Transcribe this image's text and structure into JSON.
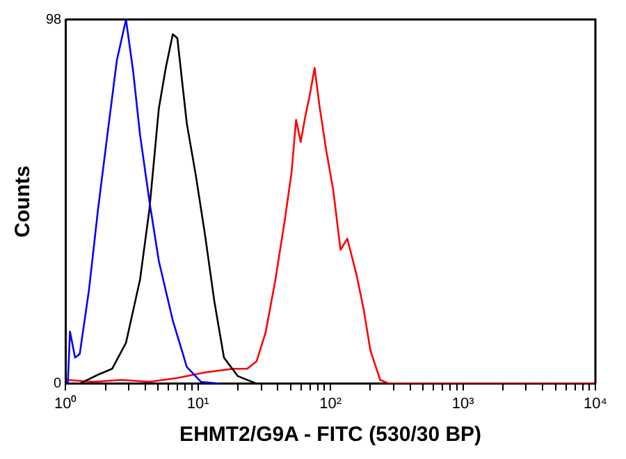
{
  "chart_data": {
    "type": "line",
    "xlabel": "EHMT2/G9A - FITC (530/30 BP)",
    "ylabel": "Counts",
    "log": "x",
    "grid": false,
    "legend": false,
    "marker": "none",
    "line_style": "solid",
    "xlim": [
      1,
      10000
    ],
    "ylim": [
      0,
      98
    ],
    "yticks": [
      0,
      98
    ],
    "xticks": [
      {
        "value": 1,
        "label": "10⁰"
      },
      {
        "value": 2,
        "label": null
      },
      {
        "value": 3,
        "label": null
      },
      {
        "value": 4,
        "label": null
      },
      {
        "value": 5,
        "label": null
      },
      {
        "value": 6,
        "label": null
      },
      {
        "value": 7,
        "label": null
      },
      {
        "value": 8,
        "label": null
      },
      {
        "value": 9,
        "label": null
      },
      {
        "value": 10,
        "label": "10¹"
      },
      {
        "value": 20,
        "label": null
      },
      {
        "value": 30,
        "label": null
      },
      {
        "value": 40,
        "label": null
      },
      {
        "value": 50,
        "label": null
      },
      {
        "value": 60,
        "label": null
      },
      {
        "value": 70,
        "label": null
      },
      {
        "value": 80,
        "label": null
      },
      {
        "value": 90,
        "label": null
      },
      {
        "value": 100,
        "label": "10²"
      },
      {
        "value": 200,
        "label": null
      },
      {
        "value": 300,
        "label": null
      },
      {
        "value": 400,
        "label": null
      },
      {
        "value": 500,
        "label": null
      },
      {
        "value": 600,
        "label": null
      },
      {
        "value": 700,
        "label": null
      },
      {
        "value": 800,
        "label": null
      },
      {
        "value": 900,
        "label": null
      },
      {
        "value": 1000,
        "label": "10³"
      },
      {
        "value": 2000,
        "label": null
      },
      {
        "value": 3000,
        "label": null
      },
      {
        "value": 4000,
        "label": null
      },
      {
        "value": 5000,
        "label": null
      },
      {
        "value": 6000,
        "label": null
      },
      {
        "value": 7000,
        "label": null
      },
      {
        "value": 8000,
        "label": null
      },
      {
        "value": 9000,
        "label": null
      },
      {
        "value": 10000,
        "label": "10⁴"
      }
    ],
    "series": [
      {
        "color": "#0000ff",
        "x": [
          1.04,
          1.08,
          1.18,
          1.28,
          1.5,
          1.76,
          2.07,
          2.44,
          2.86,
          3.24,
          3.65,
          4.3,
          5.06,
          6.45,
          8.23,
          10.5,
          14.5
        ],
        "values": [
          0,
          14,
          7,
          8,
          25,
          47,
          67,
          87,
          98,
          84,
          67,
          49,
          33,
          17,
          4.5,
          0.5,
          0
        ]
      },
      {
        "color": "#000000",
        "x": [
          1.28,
          1.76,
          2.25,
          2.86,
          3.65,
          4.3,
          5.06,
          5.71,
          6.45,
          6.98,
          8.23,
          9.63,
          11.3,
          13.3,
          15.7,
          20,
          27.7
        ],
        "values": [
          0,
          2.4,
          4,
          11,
          28,
          47,
          74,
          85,
          94,
          93,
          70,
          56,
          40,
          22,
          7,
          2,
          0
        ]
      },
      {
        "color": "#ff0000",
        "x": [
          1.02,
          1.63,
          2.64,
          4.3,
          6.98,
          11.3,
          18.4,
          23.5,
          27.7,
          32.5,
          38.4,
          45.2,
          50.9,
          55,
          59.6,
          64.6,
          70.1,
          75.9,
          82.4,
          92.7,
          105,
          119,
          134,
          158,
          178,
          200,
          237,
          278,
          10000
        ],
        "values": [
          1,
          0.5,
          1,
          0.5,
          1.5,
          3,
          4,
          4,
          6,
          14,
          28,
          44,
          57,
          71,
          65,
          72,
          78,
          85,
          75,
          63,
          52,
          36,
          39,
          29,
          20,
          9,
          1,
          0,
          0
        ]
      }
    ]
  }
}
